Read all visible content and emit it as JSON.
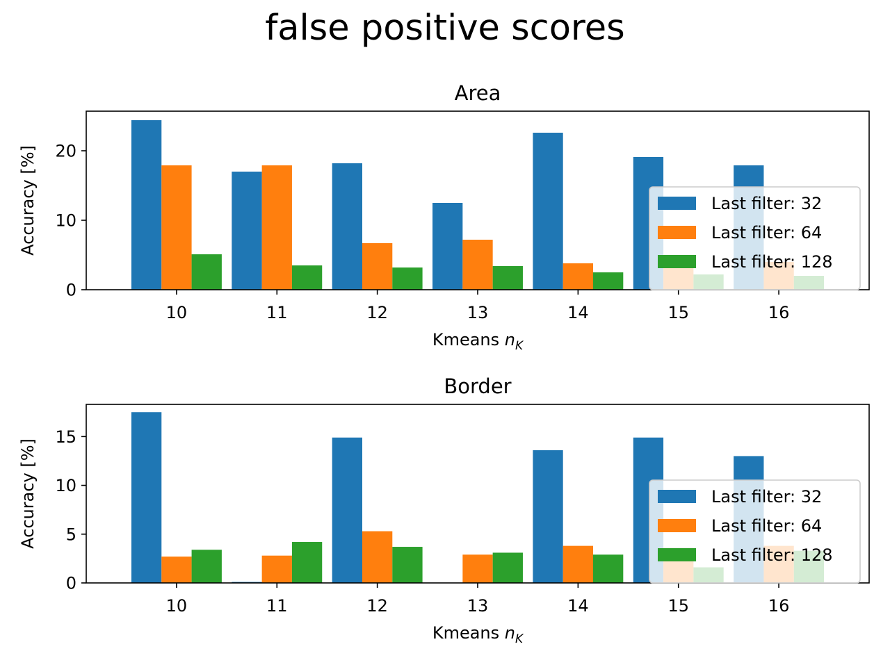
{
  "figure": {
    "title": "false positive scores"
  },
  "chart_data": [
    {
      "type": "bar",
      "title": "Area",
      "xlabel": "Kmeans n_K",
      "xlabel_prefix": "Kmeans ",
      "xlabel_math": "n",
      "xlabel_sub": "K",
      "ylabel": "Accuracy [%]",
      "ylim": [
        0,
        25.7
      ],
      "yticks": [
        0,
        10,
        20
      ],
      "categories": [
        "10",
        "11",
        "12",
        "13",
        "14",
        "15",
        "16"
      ],
      "series": [
        {
          "name": "Last filter: 32",
          "color": "#1f77b4",
          "values": [
            24.4,
            17.0,
            18.2,
            12.5,
            22.6,
            19.1,
            17.9
          ]
        },
        {
          "name": "Last filter: 64",
          "color": "#ff7f0e",
          "values": [
            17.9,
            17.9,
            6.7,
            7.2,
            3.8,
            3.6,
            4.0
          ]
        },
        {
          "name": "Last filter: 128",
          "color": "#2ca02c",
          "values": [
            5.1,
            3.5,
            3.2,
            3.4,
            2.5,
            2.2,
            2.0
          ]
        }
      ],
      "legend": "center-right"
    },
    {
      "type": "bar",
      "title": "Border",
      "xlabel": "Kmeans n_K",
      "xlabel_prefix": "Kmeans ",
      "xlabel_math": "n",
      "xlabel_sub": "K",
      "ylabel": "Accuracy [%]",
      "ylim": [
        0,
        18.3
      ],
      "yticks": [
        0,
        5,
        10,
        15
      ],
      "categories": [
        "10",
        "11",
        "12",
        "13",
        "14",
        "15",
        "16"
      ],
      "series": [
        {
          "name": "Last filter: 32",
          "color": "#1f77b4",
          "values": [
            17.5,
            0.1,
            14.9,
            0.0,
            13.6,
            14.9,
            13.0
          ]
        },
        {
          "name": "Last filter: 64",
          "color": "#ff7f0e",
          "values": [
            2.7,
            2.8,
            5.3,
            2.9,
            3.8,
            3.6,
            3.8
          ]
        },
        {
          "name": "Last filter: 128",
          "color": "#2ca02c",
          "values": [
            3.4,
            4.2,
            3.7,
            3.1,
            2.9,
            1.6,
            3.3
          ]
        }
      ],
      "legend": "lower-right"
    }
  ]
}
